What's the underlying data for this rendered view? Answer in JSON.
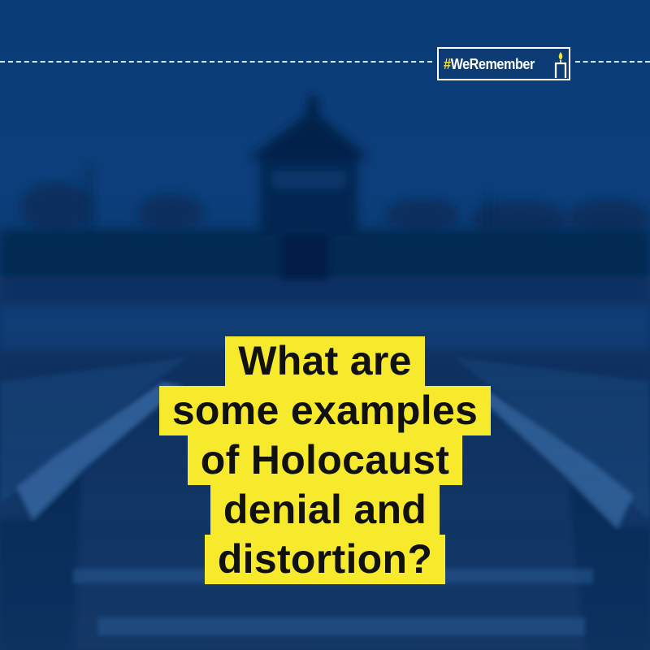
{
  "badge": {
    "hash": "#",
    "label": "WeRemember",
    "icon": "candle-icon"
  },
  "headline": {
    "lines": [
      "What are",
      "some examples",
      "of Holocaust",
      "denial and",
      "distortion?"
    ]
  },
  "colors": {
    "overlay_blue": "#0c3d78",
    "highlight_yellow": "#f7ea2c",
    "text_dark": "#111111",
    "badge_border": "#ffffff",
    "hashtag_yellow": "#f2e23a"
  }
}
